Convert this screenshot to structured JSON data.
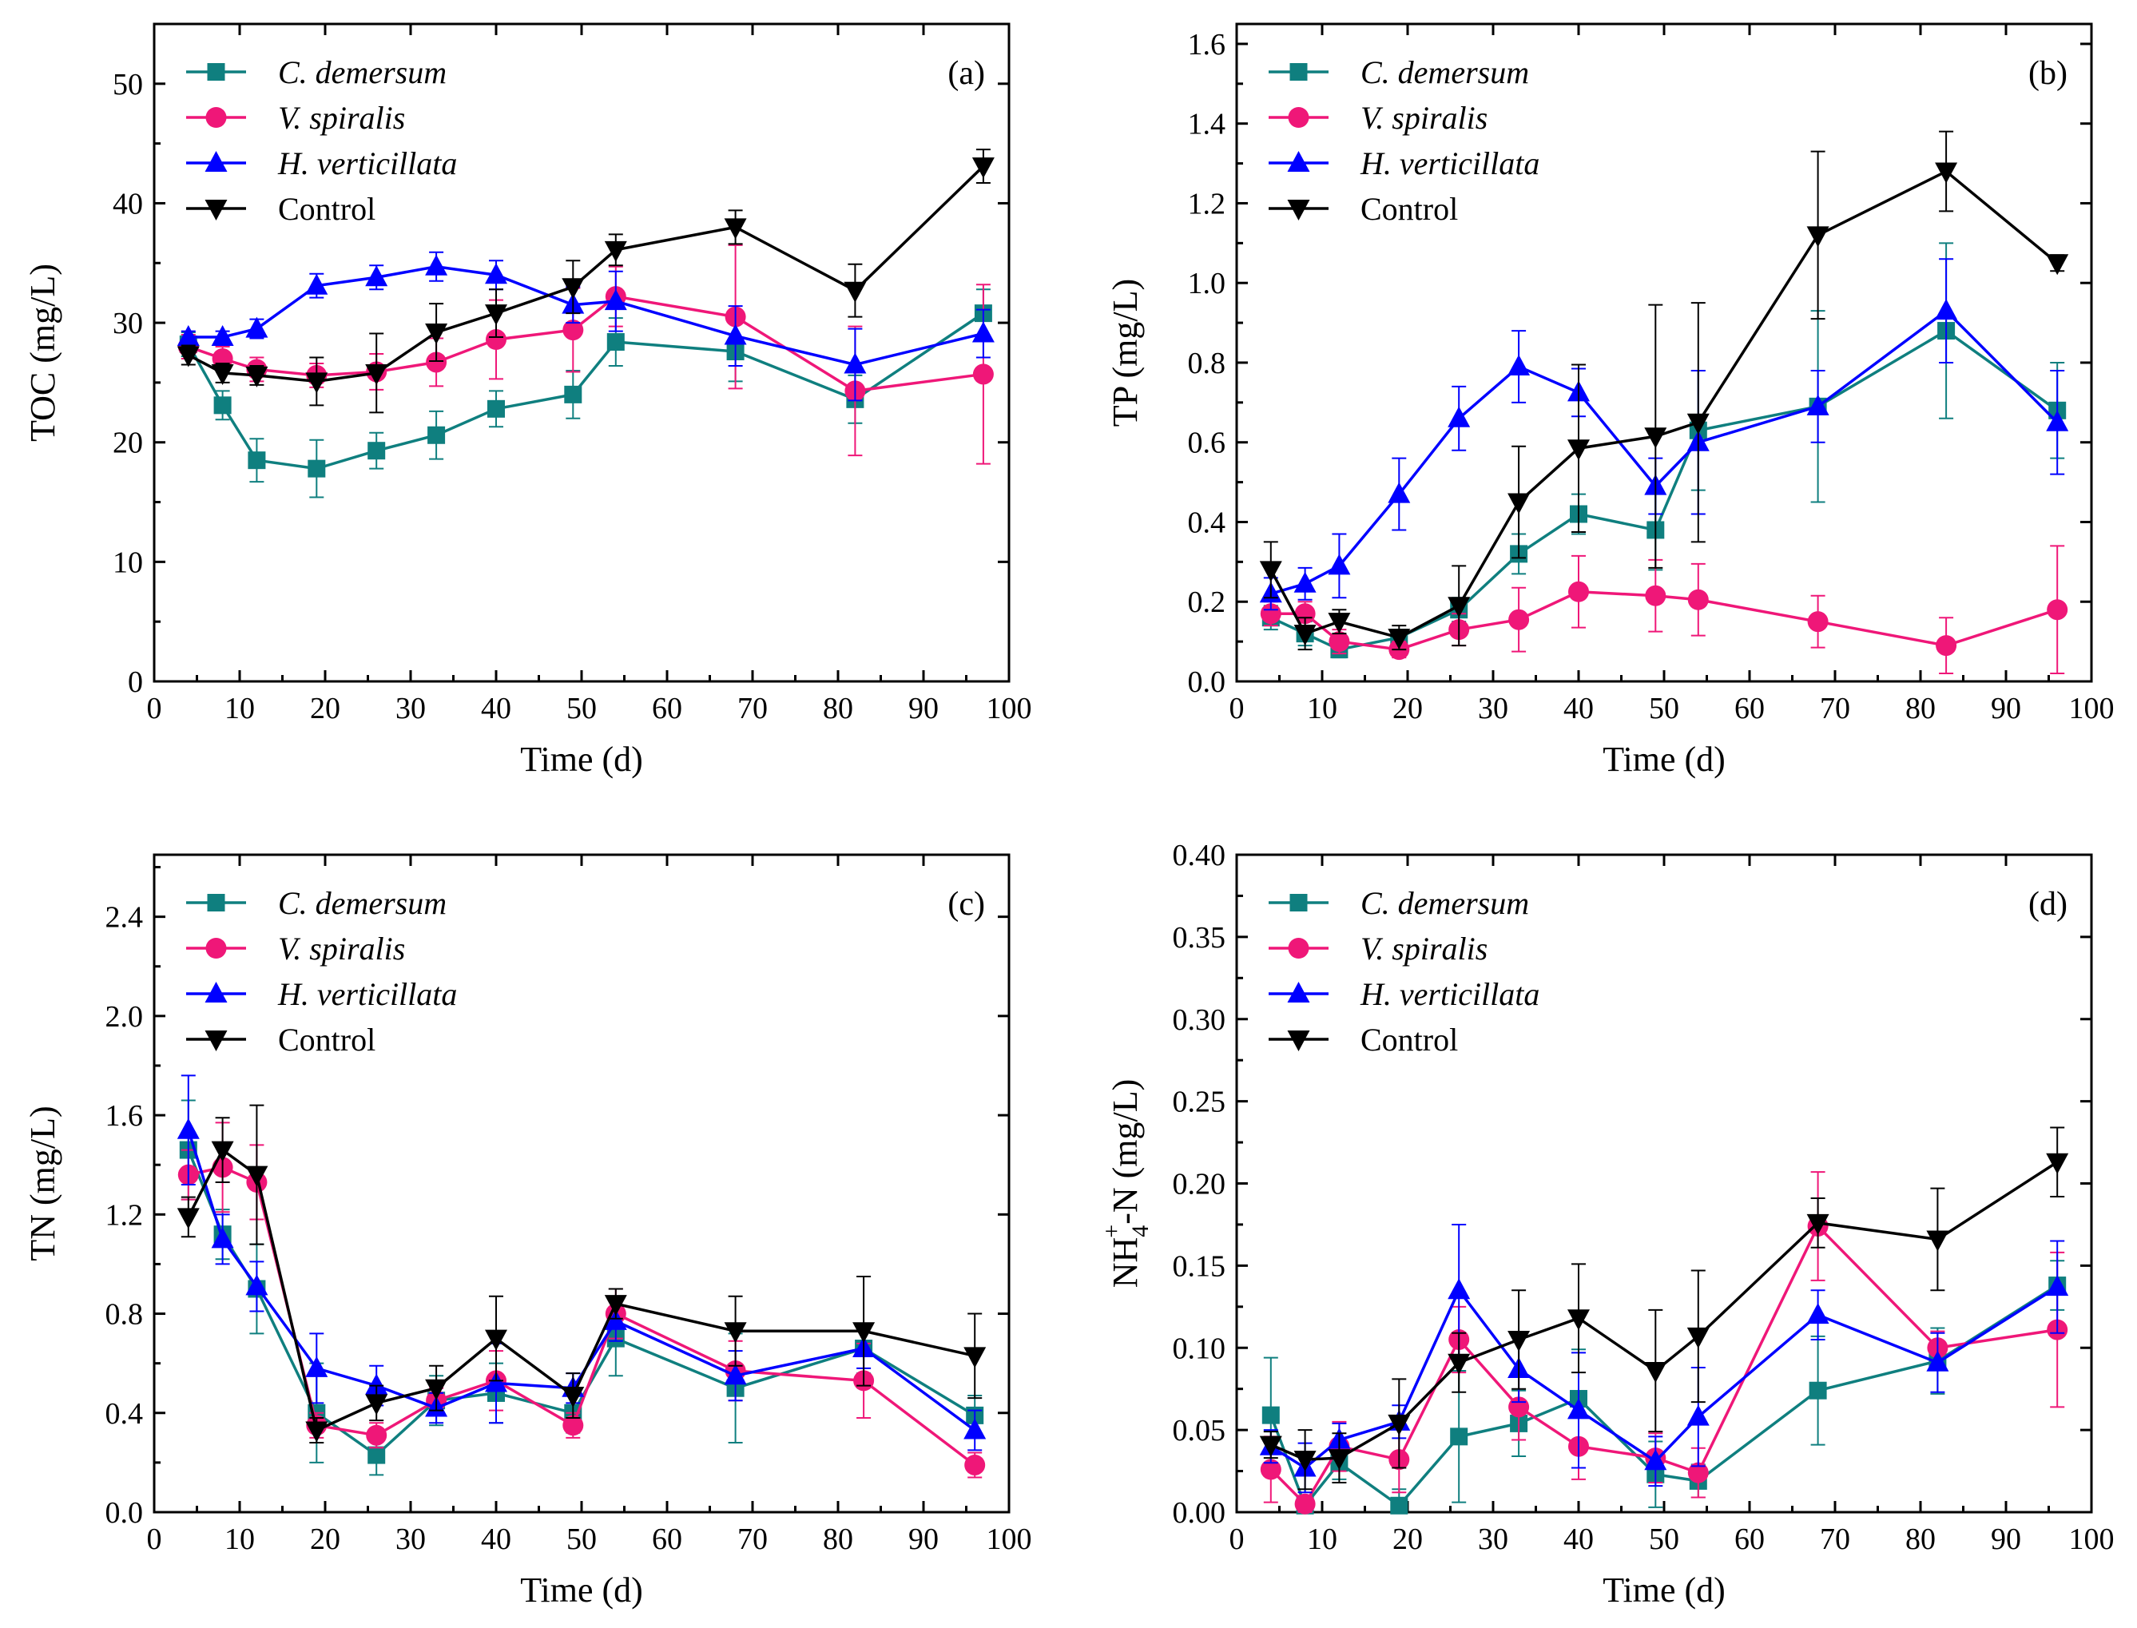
{
  "colors": {
    "c_demersum": "#0f7f7f",
    "v_spiralis": "#ef1778",
    "h_verticillata": "#0000ff",
    "control": "#000000"
  },
  "chart_data": [
    {
      "type": "line",
      "panel": "(a)",
      "xlabel": "Time (d)",
      "ylabel": "TOC (mg/L)",
      "xlim": [
        0,
        100
      ],
      "ylim": [
        0,
        55
      ],
      "xticks": [
        0,
        10,
        20,
        30,
        40,
        50,
        60,
        70,
        80,
        90,
        100
      ],
      "yticks": [
        0,
        10,
        20,
        30,
        40,
        50
      ],
      "ytick_labels": [
        "0",
        "10",
        "20",
        "30",
        "40",
        "50"
      ],
      "legend_position": "top-left",
      "series": [
        {
          "name": "C. demersum",
          "marker": "square",
          "x": [
            4,
            8,
            12,
            19,
            26,
            33,
            40,
            49,
            54,
            68,
            82,
            97
          ],
          "y": [
            28.2,
            23.1,
            18.5,
            17.8,
            19.3,
            20.6,
            22.8,
            24.0,
            28.4,
            27.6,
            23.6,
            30.8
          ],
          "err": [
            1.0,
            1.2,
            1.8,
            2.4,
            1.5,
            2.0,
            1.5,
            2.0,
            2.0,
            2.5,
            2.0,
            2.0
          ]
        },
        {
          "name": "V. spiralis",
          "marker": "circle",
          "x": [
            4,
            8,
            12,
            19,
            26,
            33,
            40,
            49,
            54,
            68,
            82,
            97
          ],
          "y": [
            28.0,
            27.0,
            26.1,
            25.6,
            25.9,
            26.7,
            28.6,
            29.4,
            32.2,
            30.5,
            24.3,
            25.7
          ],
          "err": [
            1.0,
            1.0,
            1.0,
            1.0,
            1.5,
            2.0,
            3.3,
            3.5,
            2.5,
            6.0,
            5.4,
            7.5
          ]
        },
        {
          "name": "H. verticillata",
          "marker": "triangle-up",
          "x": [
            4,
            8,
            12,
            19,
            26,
            33,
            40,
            49,
            54,
            68,
            82,
            97
          ],
          "y": [
            28.8,
            28.8,
            29.5,
            33.1,
            33.8,
            34.7,
            34.0,
            31.5,
            31.8,
            28.9,
            26.5,
            29.1
          ],
          "err": [
            0.5,
            0.5,
            0.8,
            1.0,
            1.0,
            1.2,
            1.2,
            1.5,
            2.5,
            2.5,
            3.0,
            2.0
          ]
        },
        {
          "name": "Control",
          "marker": "triangle-down",
          "x": [
            4,
            8,
            12,
            19,
            26,
            33,
            40,
            49,
            54,
            68,
            82,
            97
          ],
          "y": [
            27.3,
            25.8,
            25.6,
            25.1,
            25.8,
            29.2,
            30.8,
            33.0,
            36.1,
            38.0,
            32.7,
            43.1
          ],
          "err": [
            0.8,
            0.8,
            0.8,
            2.0,
            3.3,
            2.4,
            2.0,
            2.2,
            1.3,
            1.4,
            2.2,
            1.4
          ]
        }
      ]
    },
    {
      "type": "line",
      "panel": "(b)",
      "xlabel": "Time (d)",
      "ylabel": "TP (mg/L)",
      "xlim": [
        0,
        100
      ],
      "ylim": [
        0,
        1.65
      ],
      "xticks": [
        0,
        10,
        20,
        30,
        40,
        50,
        60,
        70,
        80,
        90,
        100
      ],
      "yticks": [
        0,
        0.2,
        0.4,
        0.6,
        0.8,
        1.0,
        1.2,
        1.4,
        1.6
      ],
      "ytick_labels": [
        "0.0",
        "0.2",
        "0.4",
        "0.6",
        "0.8",
        "1.0",
        "1.2",
        "1.4",
        "1.6"
      ],
      "legend_position": "top-left",
      "series": [
        {
          "name": "C. demersum",
          "marker": "square",
          "x": [
            4,
            8,
            12,
            19,
            26,
            33,
            40,
            49,
            54,
            68,
            83,
            96
          ],
          "y": [
            0.16,
            0.12,
            0.08,
            0.11,
            0.18,
            0.32,
            0.42,
            0.38,
            0.63,
            0.69,
            0.88,
            0.68
          ],
          "err": [
            0.03,
            0.03,
            0.02,
            0.02,
            0.03,
            0.05,
            0.05,
            0.1,
            0.15,
            0.24,
            0.22,
            0.12
          ]
        },
        {
          "name": "V. spiralis",
          "marker": "circle",
          "x": [
            4,
            8,
            12,
            19,
            26,
            33,
            40,
            49,
            54,
            68,
            83,
            96
          ],
          "y": [
            0.17,
            0.17,
            0.1,
            0.08,
            0.13,
            0.155,
            0.225,
            0.215,
            0.205,
            0.15,
            0.09,
            0.18
          ],
          "err": [
            0.03,
            0.03,
            0.03,
            0.02,
            0.04,
            0.08,
            0.09,
            0.09,
            0.09,
            0.065,
            0.07,
            0.16
          ]
        },
        {
          "name": "H. verticillata",
          "marker": "triangle-up",
          "x": [
            4,
            8,
            12,
            19,
            26,
            33,
            40,
            49,
            54,
            68,
            83,
            96
          ],
          "y": [
            0.22,
            0.245,
            0.29,
            0.47,
            0.66,
            0.79,
            0.725,
            0.49,
            0.6,
            0.69,
            0.93,
            0.65
          ],
          "err": [
            0.04,
            0.04,
            0.08,
            0.09,
            0.08,
            0.09,
            0.06,
            0.07,
            0.18,
            0.09,
            0.13,
            0.13
          ]
        },
        {
          "name": "Control",
          "marker": "triangle-down",
          "x": [
            4,
            8,
            12,
            19,
            26,
            33,
            40,
            49,
            54,
            68,
            83,
            96
          ],
          "y": [
            0.28,
            0.12,
            0.15,
            0.11,
            0.19,
            0.45,
            0.585,
            0.615,
            0.65,
            1.12,
            1.28,
            1.05
          ],
          "err": [
            0.07,
            0.04,
            0.03,
            0.03,
            0.1,
            0.14,
            0.21,
            0.33,
            0.3,
            0.21,
            0.1,
            0.02
          ]
        }
      ]
    },
    {
      "type": "line",
      "panel": "(c)",
      "xlabel": "Time (d)",
      "ylabel": "TN (mg/L)",
      "xlim": [
        0,
        100
      ],
      "ylim": [
        0,
        2.65
      ],
      "xticks": [
        0,
        10,
        20,
        30,
        40,
        50,
        60,
        70,
        80,
        90,
        100
      ],
      "yticks": [
        0,
        0.4,
        0.8,
        1.2,
        1.6,
        2.0,
        2.4
      ],
      "ytick_labels": [
        "0.0",
        "0.4",
        "0.8",
        "1.2",
        "1.6",
        "2.0",
        "2.4"
      ],
      "legend_position": "top-left",
      "series": [
        {
          "name": "C. demersum",
          "marker": "square",
          "x": [
            4,
            8,
            12,
            19,
            26,
            33,
            40,
            49,
            54,
            68,
            83,
            96
          ],
          "y": [
            1.46,
            1.12,
            0.9,
            0.4,
            0.23,
            0.45,
            0.48,
            0.4,
            0.7,
            0.5,
            0.66,
            0.39
          ],
          "err": [
            0.2,
            0.1,
            0.18,
            0.2,
            0.08,
            0.1,
            0.12,
            0.08,
            0.15,
            0.22,
            0.1,
            0.08
          ]
        },
        {
          "name": "V. spiralis",
          "marker": "circle",
          "x": [
            4,
            8,
            12,
            19,
            26,
            33,
            40,
            49,
            54,
            68,
            83,
            96
          ],
          "y": [
            1.36,
            1.39,
            1.33,
            0.35,
            0.31,
            0.45,
            0.53,
            0.35,
            0.8,
            0.57,
            0.53,
            0.19
          ],
          "err": [
            0.1,
            0.18,
            0.15,
            0.05,
            0.05,
            0.05,
            0.12,
            0.05,
            0.1,
            0.12,
            0.15,
            0.05
          ]
        },
        {
          "name": "H. verticillata",
          "marker": "triangle-up",
          "x": [
            4,
            8,
            12,
            19,
            26,
            33,
            40,
            49,
            54,
            68,
            83,
            96
          ],
          "y": [
            1.54,
            1.1,
            0.91,
            0.58,
            0.51,
            0.42,
            0.52,
            0.5,
            0.77,
            0.55,
            0.66,
            0.33
          ],
          "err": [
            0.22,
            0.1,
            0.1,
            0.14,
            0.08,
            0.06,
            0.16,
            0.06,
            0.08,
            0.1,
            0.08,
            0.08
          ]
        },
        {
          "name": "Control",
          "marker": "triangle-down",
          "x": [
            4,
            8,
            12,
            19,
            26,
            33,
            40,
            49,
            54,
            68,
            83,
            96
          ],
          "y": [
            1.19,
            1.46,
            1.36,
            0.33,
            0.44,
            0.5,
            0.7,
            0.47,
            0.84,
            0.73,
            0.73,
            0.63
          ],
          "err": [
            0.08,
            0.13,
            0.28,
            0.05,
            0.07,
            0.09,
            0.17,
            0.09,
            0.06,
            0.14,
            0.22,
            0.17
          ]
        }
      ]
    },
    {
      "type": "line",
      "panel": "(d)",
      "xlabel": "Time (d)",
      "ylabel": "NH4+-N (mg/L)",
      "ylabel_parts": {
        "base": "NH",
        "sub": "4",
        "sup": "+",
        "rest": "-N (mg/L)"
      },
      "xlim": [
        0,
        100
      ],
      "ylim": [
        0,
        0.4
      ],
      "xticks": [
        0,
        10,
        20,
        30,
        40,
        50,
        60,
        70,
        80,
        90,
        100
      ],
      "yticks": [
        0,
        0.05,
        0.1,
        0.15,
        0.2,
        0.25,
        0.3,
        0.35,
        0.4
      ],
      "ytick_labels": [
        "0.00",
        "0.05",
        "0.10",
        "0.15",
        "0.20",
        "0.25",
        "0.30",
        "0.35",
        "0.40"
      ],
      "legend_position": "top-left",
      "series": [
        {
          "name": "C. demersum",
          "marker": "square",
          "x": [
            4,
            8,
            12,
            19,
            26,
            33,
            40,
            49,
            54,
            68,
            82,
            96
          ],
          "y": [
            0.059,
            0.004,
            0.03,
            0.004,
            0.046,
            0.054,
            0.069,
            0.023,
            0.019,
            0.074,
            0.092,
            0.138
          ],
          "err": [
            0.035,
            0.005,
            0.01,
            0.01,
            0.04,
            0.02,
            0.03,
            0.02,
            0.01,
            0.033,
            0.02,
            0.015
          ]
        },
        {
          "name": "V. spiralis",
          "marker": "circle",
          "x": [
            4,
            8,
            12,
            19,
            26,
            33,
            40,
            49,
            54,
            68,
            82,
            96
          ],
          "y": [
            0.026,
            0.005,
            0.04,
            0.032,
            0.105,
            0.064,
            0.04,
            0.033,
            0.024,
            0.174,
            0.1,
            0.111
          ],
          "err": [
            0.02,
            0.005,
            0.015,
            0.02,
            0.02,
            0.02,
            0.02,
            0.015,
            0.015,
            0.033,
            0.01,
            0.047
          ]
        },
        {
          "name": "H. verticillata",
          "marker": "triangle-up",
          "x": [
            4,
            8,
            12,
            19,
            26,
            33,
            40,
            49,
            54,
            68,
            82,
            96
          ],
          "y": [
            0.04,
            0.027,
            0.044,
            0.055,
            0.135,
            0.087,
            0.062,
            0.031,
            0.058,
            0.12,
            0.091,
            0.137
          ],
          "err": [
            0.01,
            0.015,
            0.01,
            0.01,
            0.04,
            0.02,
            0.035,
            0.015,
            0.03,
            0.015,
            0.018,
            0.028
          ]
        },
        {
          "name": "Control",
          "marker": "triangle-down",
          "x": [
            4,
            8,
            12,
            19,
            26,
            33,
            40,
            49,
            54,
            68,
            82,
            96
          ],
          "y": [
            0.041,
            0.032,
            0.033,
            0.054,
            0.091,
            0.105,
            0.118,
            0.086,
            0.107,
            0.176,
            0.166,
            0.213
          ],
          "err": [
            0.008,
            0.018,
            0.015,
            0.027,
            0.018,
            0.03,
            0.033,
            0.037,
            0.04,
            0.015,
            0.031,
            0.021
          ]
        }
      ]
    }
  ]
}
